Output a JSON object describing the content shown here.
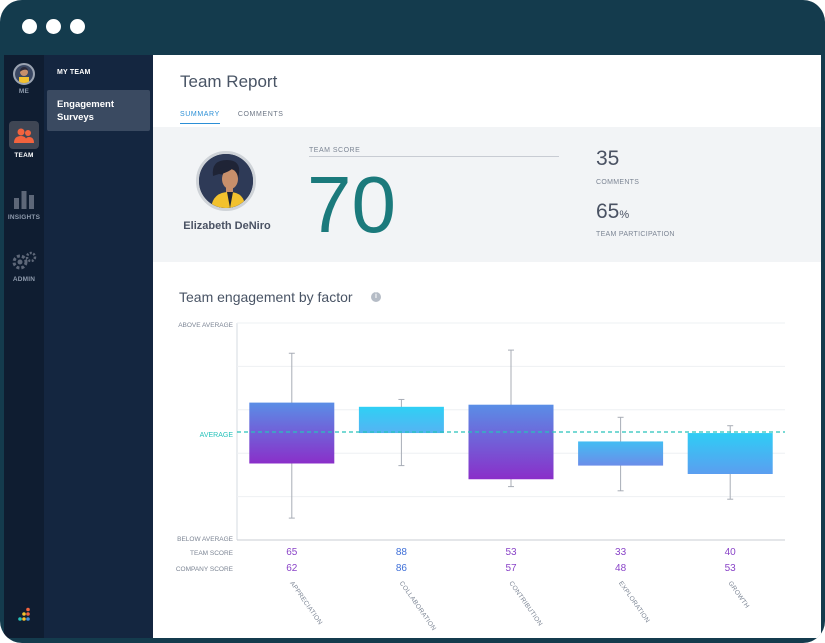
{
  "rail": {
    "me_label": "ME",
    "team_label": "TEAM",
    "insights_label": "INSIGHTS",
    "admin_label": "ADMIN"
  },
  "subnav": {
    "title": "MY TEAM",
    "item": "Engagement Surveys"
  },
  "header": {
    "title": "Team Report",
    "tabs": [
      {
        "label": "SUMMARY",
        "active": true
      },
      {
        "label": "COMMENTS",
        "active": false
      }
    ]
  },
  "summary": {
    "person_name": "Elizabeth DeNiro",
    "score_label": "TEAM SCORE",
    "score": "70",
    "comments_count": "35",
    "comments_label": "COMMENTS",
    "participation_value": "65",
    "participation_unit": "%",
    "participation_label": "TEAM PARTICIPATION"
  },
  "section": {
    "title": "Team engagement by factor",
    "info_icon": "i"
  },
  "chart_data": {
    "type": "box",
    "title": "Team engagement by factor",
    "y_labels": {
      "top": "ABOVE AVERAGE",
      "middle": "AVERAGE",
      "bottom": "BELOW AVERAGE"
    },
    "row_labels": {
      "team": "TEAM SCORE",
      "company": "COMPANY SCORE"
    },
    "categories": [
      "APPRECIATION",
      "COLLABORATION",
      "CONTRIBUTION",
      "EXPLORATION",
      "GROWTH"
    ],
    "team_score": [
      65,
      88,
      53,
      33,
      40
    ],
    "company_score": [
      62,
      86,
      57,
      48,
      53
    ],
    "scale_note": "relative to average line at 0, range -1 (below average) to 1 (above average)",
    "boxes": [
      {
        "whisker_high": 0.75,
        "box_high": 0.28,
        "box_low": -0.3,
        "whisker_low": -0.82,
        "gradient": "purple"
      },
      {
        "whisker_high": 0.31,
        "box_high": 0.24,
        "box_low": -0.01,
        "whisker_low": -0.32,
        "gradient": "cyan"
      },
      {
        "whisker_high": 0.78,
        "box_high": 0.26,
        "box_low": -0.45,
        "whisker_low": -0.52,
        "gradient": "purple"
      },
      {
        "whisker_high": 0.14,
        "box_high": -0.09,
        "box_low": -0.32,
        "whisker_low": -0.56,
        "gradient": "blue"
      },
      {
        "whisker_high": 0.06,
        "box_high": -0.01,
        "box_low": -0.4,
        "whisker_low": -0.64,
        "gradient": "sky"
      }
    ],
    "colors": {
      "average_line": "#27c2ba",
      "team_score_text": [
        "#8a44c8",
        "#3e6fd8",
        "#8a44c8",
        "#8a44c8",
        "#8a44c8"
      ],
      "company_score_text": [
        "#8a44c8",
        "#3e6fd8",
        "#8a44c8",
        "#8a44c8",
        "#8a44c8"
      ]
    }
  }
}
